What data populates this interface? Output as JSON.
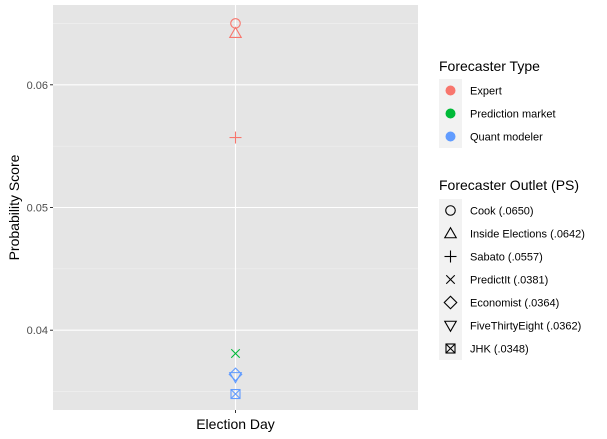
{
  "chart_data": {
    "type": "scatter",
    "xlabel": "Election Day",
    "ylabel": "Probability Score",
    "categories": [
      "Election Day"
    ],
    "ylim": [
      0.0335,
      0.0665
    ],
    "yticks": [
      0.04,
      0.05,
      0.06
    ],
    "ytick_labels": [
      "0.04",
      "0.05",
      "0.06"
    ],
    "grid": true,
    "legend_position": "right",
    "points": [
      {
        "x": "Election Day",
        "y": 0.065,
        "type": "Expert",
        "outlet": "Cook (.0650)",
        "shape": "circle"
      },
      {
        "x": "Election Day",
        "y": 0.0642,
        "type": "Expert",
        "outlet": "Inside Elections (.0642)",
        "shape": "triangle"
      },
      {
        "x": "Election Day",
        "y": 0.0557,
        "type": "Expert",
        "outlet": "Sabato (.0557)",
        "shape": "plus"
      },
      {
        "x": "Election Day",
        "y": 0.0381,
        "type": "Prediction market",
        "outlet": "PredictIt (.0381)",
        "shape": "cross"
      },
      {
        "x": "Election Day",
        "y": 0.0364,
        "type": "Quant modeler",
        "outlet": "Economist (.0364)",
        "shape": "diamond"
      },
      {
        "x": "Election Day",
        "y": 0.0362,
        "type": "Quant modeler",
        "outlet": "FiveThirtyEight (.0362)",
        "shape": "triangle-down"
      },
      {
        "x": "Election Day",
        "y": 0.0348,
        "type": "Quant modeler",
        "outlet": "JHK (.0348)",
        "shape": "boxed-x"
      }
    ],
    "legend_type": {
      "title": "Forecaster Type",
      "items": [
        {
          "label": "Expert",
          "color": "#F8766D"
        },
        {
          "label": "Prediction market",
          "color": "#00BA38"
        },
        {
          "label": "Quant modeler",
          "color": "#619CFF"
        }
      ]
    },
    "legend_outlet": {
      "title": "Forecaster Outlet (PS)",
      "items": [
        {
          "label": "Cook (.0650)",
          "shape": "circle"
        },
        {
          "label": "Inside Elections (.0642)",
          "shape": "triangle"
        },
        {
          "label": "Sabato (.0557)",
          "shape": "plus"
        },
        {
          "label": "PredictIt (.0381)",
          "shape": "cross"
        },
        {
          "label": "Economist (.0364)",
          "shape": "diamond"
        },
        {
          "label": "FiveThirtyEight (.0362)",
          "shape": "triangle-down"
        },
        {
          "label": "JHK (.0348)",
          "shape": "boxed-x"
        }
      ]
    },
    "colors": {
      "panel_background": "#E5E5E5",
      "grid_major": "#FFFFFF",
      "tick_text": "#4D4D4D"
    }
  }
}
